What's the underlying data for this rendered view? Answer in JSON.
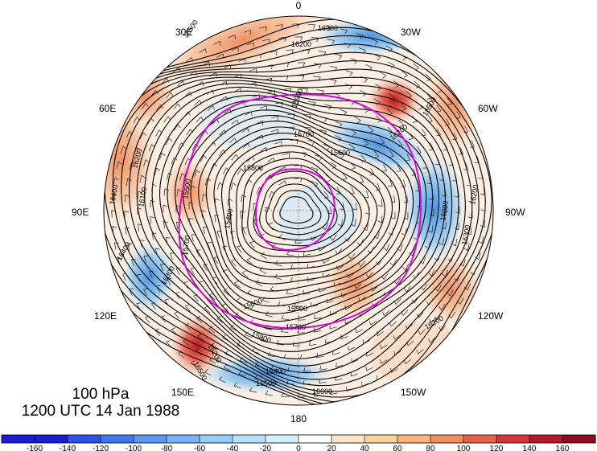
{
  "caption": {
    "level": "100 hPa",
    "time": "1200 UTC 14 Jan 1988"
  },
  "longitude_labels": [
    "0",
    "30W",
    "60W",
    "90W",
    "120W",
    "150W",
    "180",
    "150E",
    "120E",
    "90E",
    "60E",
    "30E"
  ],
  "contour_labels": [
    "16500",
    "16400",
    "16300",
    "16200",
    "16100",
    "16000",
    "15900",
    "15800",
    "15700",
    "15600",
    "15500",
    "15400",
    "16600"
  ],
  "colorbar": {
    "ticks": [
      "-160",
      "-140",
      "-120",
      "-100",
      "-80",
      "-60",
      "-40",
      "-20",
      "0",
      "20",
      "40",
      "60",
      "80",
      "100",
      "120",
      "140",
      "160"
    ],
    "colors": [
      "#1a1ad6",
      "#2c52e6",
      "#3d78f0",
      "#5a96f5",
      "#78b2fa",
      "#96cdfc",
      "#b4e0fd",
      "#d4f0fe",
      "#ffffff",
      "#fde6c8",
      "#fbd09f",
      "#f8b47a",
      "#f28d5c",
      "#e9604a",
      "#d8333a",
      "#b9162c",
      "#8f0a20"
    ]
  },
  "anomaly_colors": {
    "positive_strong": "#cc1a1a",
    "positive": "#f4a582",
    "positive_weak": "#fbe3cf",
    "negative": "#6ab4ec",
    "negative_weak": "#cde8f8"
  },
  "highlight_contour_color": "#e000e0"
}
